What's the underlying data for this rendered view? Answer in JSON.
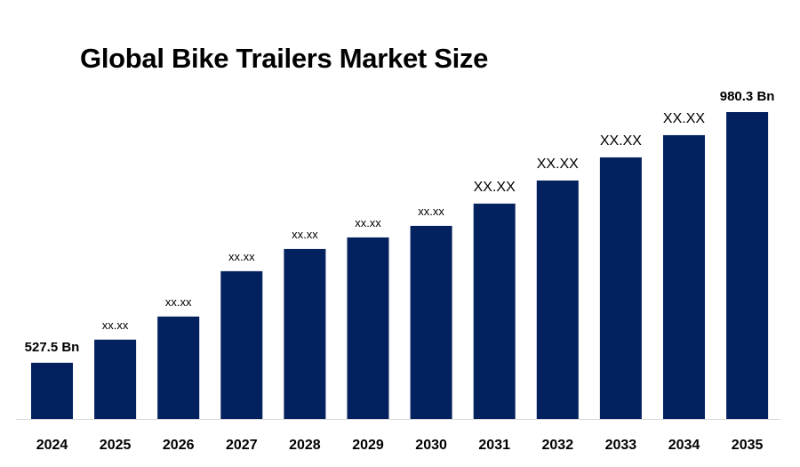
{
  "chart_data": {
    "type": "bar",
    "title": "Global Bike Trailers Market Size",
    "xlabel": "",
    "ylabel": "",
    "categories": [
      "2024",
      "2025",
      "2026",
      "2027",
      "2028",
      "2029",
      "2030",
      "2031",
      "2032",
      "2033",
      "2034",
      "2035"
    ],
    "values": [
      527.5,
      569.3,
      611.0,
      692.9,
      733.0,
      753.9,
      774.8,
      815.0,
      856.7,
      898.5,
      938.6,
      980.3
    ],
    "data_labels": [
      "527.5 Bn",
      "xx.xx",
      "xx.xx",
      "xx.xx",
      "xx.xx",
      "xx.xx",
      "xx.xx",
      "XX.XX",
      "XX.XX",
      "XX.XX",
      "XX.XX",
      "980.3 Bn"
    ],
    "ylim": [
      426,
      980.3
    ],
    "grid": false,
    "legend": "none",
    "bar_color": "#03215F"
  }
}
